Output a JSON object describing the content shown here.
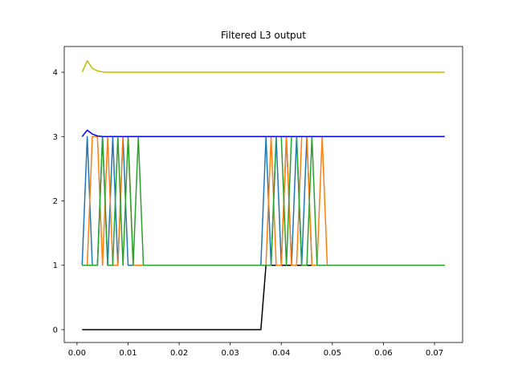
{
  "chart_data": {
    "type": "line",
    "title": "Filtered L3 output",
    "xlabel": "",
    "ylabel": "",
    "xlim": [
      -0.0025,
      0.0755
    ],
    "ylim": [
      -0.2,
      4.4
    ],
    "x_ticks": [
      0.0,
      0.01,
      0.02,
      0.03,
      0.04,
      0.05,
      0.06,
      0.07
    ],
    "x_tick_labels": [
      "0.00",
      "0.01",
      "0.02",
      "0.03",
      "0.04",
      "0.05",
      "0.06",
      "0.07"
    ],
    "y_ticks": [
      0,
      1,
      2,
      3,
      4
    ],
    "y_tick_labels": [
      "0",
      "1",
      "2",
      "3",
      "4"
    ],
    "grid": false,
    "legend": "none",
    "series": [
      {
        "color": "#000000",
        "points": [
          [
            0.001,
            0
          ],
          [
            0.036,
            0
          ],
          [
            0.037,
            1
          ],
          [
            0.072,
            1
          ]
        ]
      },
      {
        "color": "#1f77b4",
        "points": [
          [
            0.001,
            1
          ],
          [
            0.002,
            3
          ],
          [
            0.003,
            1
          ],
          [
            0.004,
            1
          ],
          [
            0.005,
            3
          ],
          [
            0.006,
            1
          ],
          [
            0.007,
            3
          ],
          [
            0.008,
            1
          ],
          [
            0.009,
            3
          ],
          [
            0.01,
            1
          ],
          [
            0.036,
            1
          ],
          [
            0.037,
            3
          ],
          [
            0.038,
            1
          ],
          [
            0.039,
            3
          ],
          [
            0.04,
            1
          ],
          [
            0.041,
            3
          ],
          [
            0.042,
            1
          ],
          [
            0.043,
            3
          ],
          [
            0.044,
            1
          ],
          [
            0.045,
            3
          ],
          [
            0.046,
            1
          ],
          [
            0.072,
            1
          ]
        ]
      },
      {
        "color": "#ff7f0e",
        "points": [
          [
            0.001,
            1
          ],
          [
            0.002,
            1
          ],
          [
            0.003,
            3
          ],
          [
            0.004,
            3
          ],
          [
            0.005,
            1
          ],
          [
            0.006,
            3
          ],
          [
            0.007,
            1
          ],
          [
            0.008,
            1
          ],
          [
            0.009,
            3
          ],
          [
            0.01,
            3
          ],
          [
            0.011,
            1
          ],
          [
            0.037,
            1
          ],
          [
            0.038,
            3
          ],
          [
            0.039,
            1
          ],
          [
            0.04,
            1
          ],
          [
            0.041,
            3
          ],
          [
            0.042,
            1
          ],
          [
            0.043,
            1
          ],
          [
            0.044,
            3
          ],
          [
            0.045,
            3
          ],
          [
            0.046,
            1
          ],
          [
            0.047,
            1
          ],
          [
            0.048,
            3
          ],
          [
            0.049,
            1
          ],
          [
            0.072,
            1
          ]
        ]
      },
      {
        "color": "#2ca02c",
        "points": [
          [
            0.001,
            1
          ],
          [
            0.004,
            1
          ],
          [
            0.005,
            3
          ],
          [
            0.006,
            1
          ],
          [
            0.007,
            1
          ],
          [
            0.008,
            3
          ],
          [
            0.009,
            1
          ],
          [
            0.01,
            3
          ],
          [
            0.011,
            1
          ],
          [
            0.012,
            3
          ],
          [
            0.013,
            1
          ],
          [
            0.038,
            1
          ],
          [
            0.039,
            3
          ],
          [
            0.04,
            3
          ],
          [
            0.041,
            1
          ],
          [
            0.042,
            3
          ],
          [
            0.043,
            3
          ],
          [
            0.044,
            1
          ],
          [
            0.045,
            1
          ],
          [
            0.046,
            3
          ],
          [
            0.047,
            1
          ],
          [
            0.072,
            1
          ]
        ]
      },
      {
        "color": "#0000ff",
        "points": [
          [
            0.001,
            3.0
          ],
          [
            0.002,
            3.1
          ],
          [
            0.003,
            3.04
          ],
          [
            0.004,
            3.01
          ],
          [
            0.005,
            3.0
          ],
          [
            0.072,
            3.0
          ]
        ]
      },
      {
        "color": "#bfbf00",
        "points": [
          [
            0.001,
            4.0
          ],
          [
            0.002,
            4.18
          ],
          [
            0.003,
            4.06
          ],
          [
            0.004,
            4.02
          ],
          [
            0.005,
            4.005
          ],
          [
            0.006,
            4.0
          ],
          [
            0.072,
            4.0
          ]
        ]
      }
    ]
  }
}
